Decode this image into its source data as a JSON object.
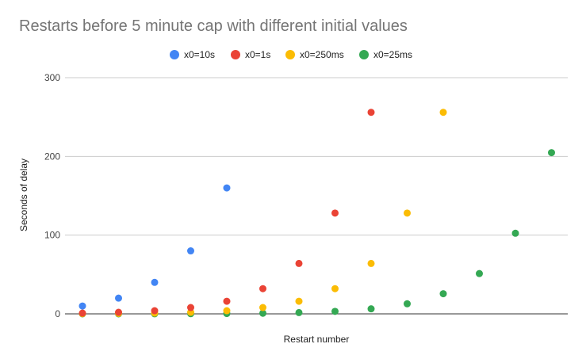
{
  "chart_data": {
    "type": "scatter",
    "title": "Restarts before 5 minute cap with different initial values",
    "xlabel": "Restart number",
    "ylabel": "Seconds of delay",
    "ylim": [
      0,
      300
    ],
    "yticks": [
      0,
      100,
      200,
      300
    ],
    "x_range": [
      1,
      14
    ],
    "grid": "horizontal",
    "legend": "top",
    "series": [
      {
        "name": "x0=10s",
        "color": "#4285F4",
        "points": [
          [
            1,
            10
          ],
          [
            2,
            20
          ],
          [
            3,
            40
          ],
          [
            4,
            80
          ],
          [
            5,
            160
          ]
        ]
      },
      {
        "name": "x0=1s",
        "color": "#EA4335",
        "points": [
          [
            1,
            1
          ],
          [
            2,
            2
          ],
          [
            3,
            4
          ],
          [
            4,
            8
          ],
          [
            5,
            16
          ],
          [
            6,
            32
          ],
          [
            7,
            64
          ],
          [
            8,
            128
          ],
          [
            9,
            256
          ]
        ]
      },
      {
        "name": "x0=250ms",
        "color": "#FBBC04",
        "points": [
          [
            1,
            0.25
          ],
          [
            2,
            0.5
          ],
          [
            3,
            1
          ],
          [
            4,
            2
          ],
          [
            5,
            4
          ],
          [
            6,
            8
          ],
          [
            7,
            16
          ],
          [
            8,
            32
          ],
          [
            9,
            64
          ],
          [
            10,
            128
          ],
          [
            11,
            256
          ]
        ]
      },
      {
        "name": "x0=25ms",
        "color": "#34A853",
        "points": [
          [
            1,
            0.025
          ],
          [
            2,
            0.05
          ],
          [
            3,
            0.1
          ],
          [
            4,
            0.2
          ],
          [
            5,
            0.4
          ],
          [
            6,
            0.8
          ],
          [
            7,
            1.6
          ],
          [
            8,
            3.2
          ],
          [
            9,
            6.4
          ],
          [
            10,
            12.8
          ],
          [
            11,
            25.6
          ],
          [
            12,
            51.2
          ],
          [
            13,
            102.4
          ],
          [
            14,
            204.8
          ]
        ]
      }
    ]
  }
}
